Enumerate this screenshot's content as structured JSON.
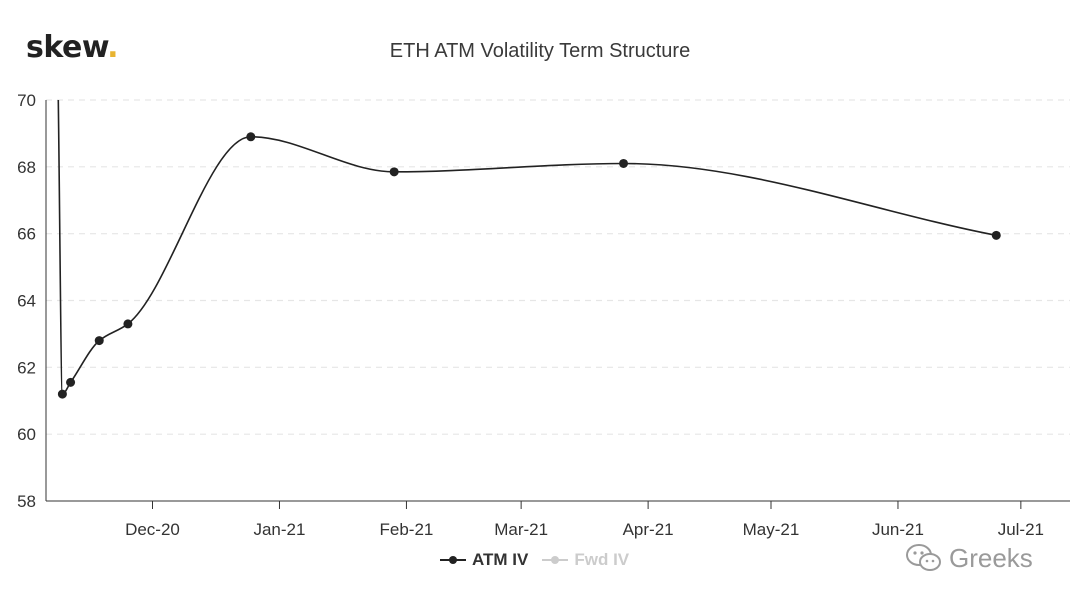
{
  "brand": {
    "name": "skew",
    "dot": "."
  },
  "watermark": {
    "text": "Greeks",
    "icon": "wechat-icon"
  },
  "colors": {
    "series": "#222222",
    "grid": "#e6e6e6",
    "axis": "#333333",
    "inactive": "#cccccc",
    "brand_dot": "#e8b431"
  },
  "chart_data": {
    "type": "line",
    "title": "ETH ATM Volatility Term Structure",
    "xlabel": "",
    "ylabel": "",
    "ylim": [
      58,
      70
    ],
    "yticks": [
      58,
      60,
      62,
      64,
      66,
      68,
      70
    ],
    "xlim": [
      "2020-11-05",
      "2021-07-13"
    ],
    "xticks": [
      {
        "date": "2020-12-01",
        "label": "Dec-20"
      },
      {
        "date": "2021-01-01",
        "label": "Jan-21"
      },
      {
        "date": "2021-02-01",
        "label": "Feb-21"
      },
      {
        "date": "2021-03-01",
        "label": "Mar-21"
      },
      {
        "date": "2021-04-01",
        "label": "Apr-21"
      },
      {
        "date": "2021-05-01",
        "label": "May-21"
      },
      {
        "date": "2021-06-01",
        "label": "Jun-21"
      },
      {
        "date": "2021-07-01",
        "label": "Jul-21"
      }
    ],
    "grid": true,
    "legend_position": "bottom-center",
    "series": [
      {
        "name": "ATM IV",
        "active": true,
        "points": [
          {
            "x": "2020-11-08",
            "y": 70.0,
            "marker": false
          },
          {
            "x": "2020-11-09",
            "y": 61.2,
            "marker": true
          },
          {
            "x": "2020-11-11",
            "y": 61.55,
            "marker": true
          },
          {
            "x": "2020-11-18",
            "y": 62.8,
            "marker": true
          },
          {
            "x": "2020-11-25",
            "y": 63.3,
            "marker": true
          },
          {
            "x": "2020-12-25",
            "y": 68.9,
            "marker": true
          },
          {
            "x": "2021-01-29",
            "y": 67.85,
            "marker": true
          },
          {
            "x": "2021-03-26",
            "y": 68.1,
            "marker": true
          },
          {
            "x": "2021-06-25",
            "y": 65.95,
            "marker": true
          }
        ]
      },
      {
        "name": "Fwd IV",
        "active": false,
        "points": []
      }
    ]
  }
}
